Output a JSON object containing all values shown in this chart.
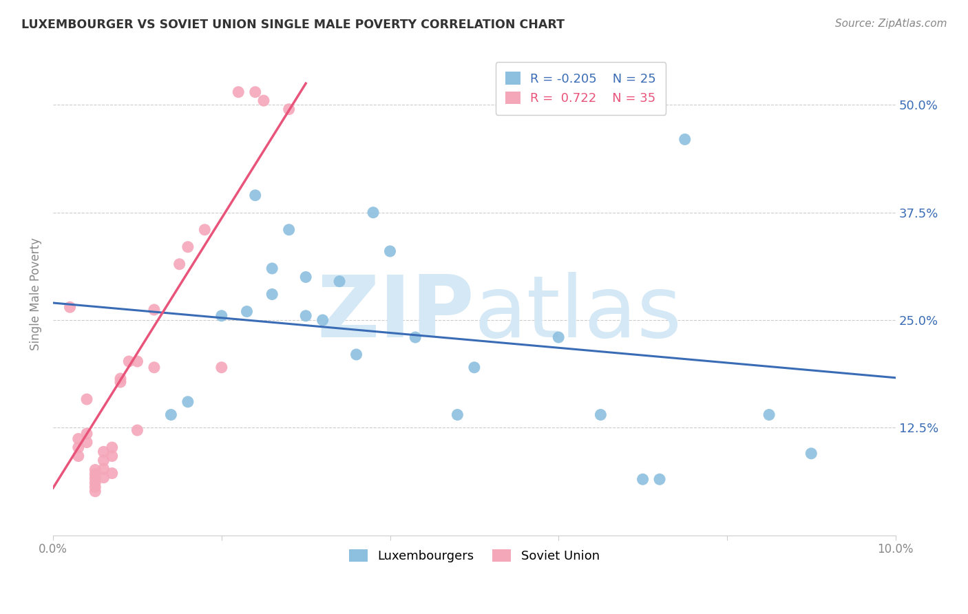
{
  "title": "LUXEMBOURGER VS SOVIET UNION SINGLE MALE POVERTY CORRELATION CHART",
  "source": "Source: ZipAtlas.com",
  "ylabel": "Single Male Poverty",
  "ytick_labels": [
    "12.5%",
    "25.0%",
    "37.5%",
    "50.0%"
  ],
  "ytick_values": [
    0.125,
    0.25,
    0.375,
    0.5
  ],
  "xlim": [
    0.0,
    0.1
  ],
  "ylim": [
    0.0,
    0.56
  ],
  "legend_blue_label": "Luxembourgers",
  "legend_pink_label": "Soviet Union",
  "blue_color": "#8DBFDF",
  "pink_color": "#F4A7B9",
  "blue_line_color": "#3A6CB5",
  "pink_line_color": "#E8547A",
  "watermark_zip": "ZIP",
  "watermark_atlas": "atlas",
  "watermark_color": "#D5E8F5",
  "blue_dots_x": [
    0.014,
    0.016,
    0.02,
    0.023,
    0.024,
    0.026,
    0.026,
    0.028,
    0.03,
    0.03,
    0.032,
    0.034,
    0.036,
    0.038,
    0.04,
    0.043,
    0.048,
    0.05,
    0.06,
    0.065,
    0.07,
    0.072,
    0.075,
    0.085,
    0.09
  ],
  "blue_dots_y": [
    0.14,
    0.155,
    0.255,
    0.26,
    0.395,
    0.31,
    0.28,
    0.355,
    0.3,
    0.255,
    0.25,
    0.295,
    0.21,
    0.375,
    0.33,
    0.23,
    0.14,
    0.195,
    0.23,
    0.14,
    0.065,
    0.065,
    0.46,
    0.14,
    0.095
  ],
  "pink_dots_x": [
    0.002,
    0.003,
    0.003,
    0.003,
    0.004,
    0.004,
    0.004,
    0.005,
    0.005,
    0.005,
    0.005,
    0.005,
    0.005,
    0.006,
    0.006,
    0.006,
    0.006,
    0.007,
    0.007,
    0.007,
    0.008,
    0.008,
    0.009,
    0.01,
    0.01,
    0.012,
    0.012,
    0.015,
    0.016,
    0.018,
    0.02,
    0.022,
    0.024,
    0.025,
    0.028
  ],
  "pink_dots_y": [
    0.265,
    0.112,
    0.102,
    0.092,
    0.158,
    0.118,
    0.108,
    0.076,
    0.071,
    0.066,
    0.061,
    0.056,
    0.051,
    0.097,
    0.087,
    0.077,
    0.067,
    0.102,
    0.092,
    0.072,
    0.182,
    0.178,
    0.202,
    0.202,
    0.122,
    0.262,
    0.195,
    0.315,
    0.335,
    0.355,
    0.195,
    0.515,
    0.515,
    0.505,
    0.495
  ],
  "blue_trend_x": [
    0.0,
    0.1
  ],
  "blue_trend_y": [
    0.27,
    0.183
  ],
  "pink_trend_x": [
    0.0,
    0.03
  ],
  "pink_trend_y": [
    0.055,
    0.525
  ],
  "xtick_vals": [
    0.0,
    0.02,
    0.04,
    0.06,
    0.08,
    0.1
  ]
}
